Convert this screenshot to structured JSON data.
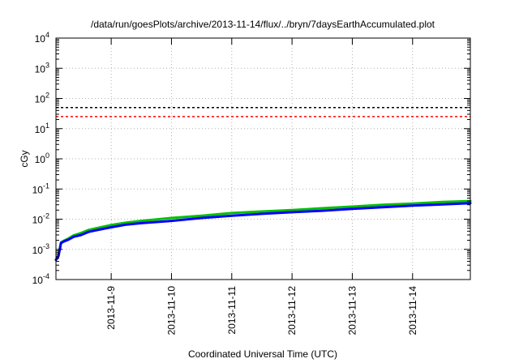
{
  "chart_data": {
    "type": "line",
    "title": "/data/run/goesPlots/archive/2013-11-14/flux/../bryn/7daysEarthAccumulated.plot",
    "xlabel": "Coordinated Universal Time (UTC)",
    "ylabel": "cGy",
    "y_scale": "log",
    "ylim": [
      0.0001,
      10000
    ],
    "xlim": [
      "2013-11-08T02:00",
      "2013-11-14T23:00"
    ],
    "grid": true,
    "y_ticks": [
      {
        "value": 0.0001,
        "base": "10",
        "exp": "-4"
      },
      {
        "value": 0.001,
        "base": "10",
        "exp": "-3"
      },
      {
        "value": 0.01,
        "base": "10",
        "exp": "-2"
      },
      {
        "value": 0.1,
        "base": "10",
        "exp": "-1"
      },
      {
        "value": 1,
        "base": "10",
        "exp": "0"
      },
      {
        "value": 10,
        "base": "10",
        "exp": "1"
      },
      {
        "value": 100,
        "base": "10",
        "exp": "2"
      },
      {
        "value": 1000,
        "base": "10",
        "exp": "3"
      },
      {
        "value": 10000,
        "base": "10",
        "exp": "4"
      }
    ],
    "x_ticks": [
      {
        "value": "2013-11-09T00:00",
        "label": "2013-11-9"
      },
      {
        "value": "2013-11-10T00:00",
        "label": "2013-11-10"
      },
      {
        "value": "2013-11-11T00:00",
        "label": "2013-11-11"
      },
      {
        "value": "2013-11-12T00:00",
        "label": "2013-11-12"
      },
      {
        "value": "2013-11-13T00:00",
        "label": "2013-11-13"
      },
      {
        "value": "2013-11-14T00:00",
        "label": "2013-11-14"
      }
    ],
    "reference_lines": [
      {
        "y": 50,
        "color": "#000000",
        "style": "dashed"
      },
      {
        "y": 25,
        "color": "#ff0000",
        "style": "dashed"
      }
    ],
    "series": [
      {
        "color": "#00c000",
        "x": [
          "2013-11-08T02:00",
          "2013-11-08T03:00",
          "2013-11-08T04:00",
          "2013-11-08T05:00",
          "2013-11-08T07:00",
          "2013-11-08T09:00",
          "2013-11-08T12:00",
          "2013-11-08T15:00",
          "2013-11-08T18:00",
          "2013-11-09T00:00",
          "2013-11-09T06:00",
          "2013-11-09T12:00",
          "2013-11-10T00:00",
          "2013-11-10T12:00",
          "2013-11-11T00:00",
          "2013-11-11T12:00",
          "2013-11-12T00:00",
          "2013-11-12T12:00",
          "2013-11-13T00:00",
          "2013-11-13T12:00",
          "2013-11-14T00:00",
          "2013-11-14T12:00",
          "2013-11-14T23:00"
        ],
        "y": [
          0.00045,
          0.0006,
          0.0017,
          0.0019,
          0.0023,
          0.0029,
          0.0035,
          0.0044,
          0.005,
          0.0064,
          0.0077,
          0.0088,
          0.011,
          0.013,
          0.016,
          0.018,
          0.02,
          0.023,
          0.026,
          0.03,
          0.033,
          0.037,
          0.04
        ]
      },
      {
        "color": "#0000ff",
        "x": [
          "2013-11-08T02:00",
          "2013-11-08T03:00",
          "2013-11-08T04:00",
          "2013-11-08T05:00",
          "2013-11-08T07:00",
          "2013-11-08T09:00",
          "2013-11-08T12:00",
          "2013-11-08T15:00",
          "2013-11-08T18:00",
          "2013-11-09T00:00",
          "2013-11-09T06:00",
          "2013-11-09T12:00",
          "2013-11-10T00:00",
          "2013-11-10T12:00",
          "2013-11-11T00:00",
          "2013-11-11T12:00",
          "2013-11-12T00:00",
          "2013-11-12T12:00",
          "2013-11-13T00:00",
          "2013-11-13T12:00",
          "2013-11-14T00:00",
          "2013-11-14T12:00",
          "2013-11-14T23:00"
        ],
        "y": [
          0.00045,
          0.0006,
          0.0016,
          0.0018,
          0.0021,
          0.0026,
          0.003,
          0.0038,
          0.0043,
          0.0054,
          0.0066,
          0.0074,
          0.0088,
          0.011,
          0.013,
          0.015,
          0.017,
          0.019,
          0.022,
          0.025,
          0.028,
          0.031,
          0.034
        ]
      }
    ]
  }
}
